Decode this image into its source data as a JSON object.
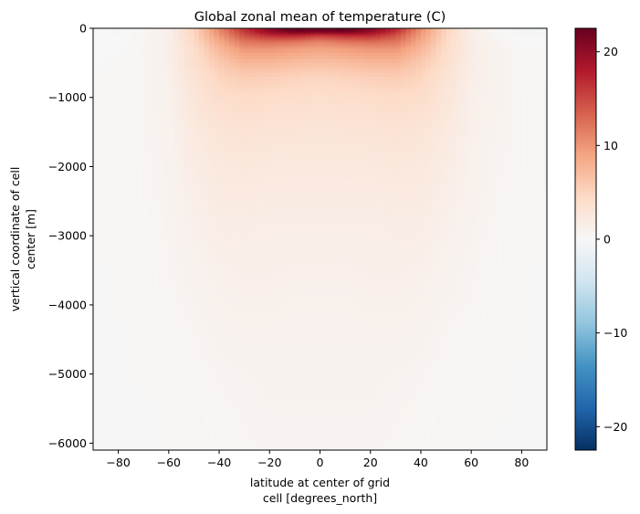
{
  "chart_data": {
    "type": "heatmap",
    "title": "Global zonal mean of temperature (C)",
    "xlabel_lines": [
      "latitude at center of grid",
      "cell [degrees_north]"
    ],
    "ylabel_lines": [
      "vertical coordinate of cell",
      "center [m]"
    ],
    "xlim": [
      -90,
      90
    ],
    "ylim": [
      -6100,
      0
    ],
    "x_ticks": [
      -80,
      -60,
      -40,
      -20,
      0,
      20,
      40,
      60,
      80
    ],
    "x_tick_labels": [
      "−80",
      "−60",
      "−40",
      "−20",
      "0",
      "20",
      "40",
      "60",
      "80"
    ],
    "y_ticks": [
      0,
      -1000,
      -2000,
      -3000,
      -4000,
      -5000,
      -6000
    ],
    "y_tick_labels": [
      "0",
      "−1000",
      "−2000",
      "−3000",
      "−4000",
      "−5000",
      "−6000"
    ],
    "colorbar": {
      "cmap": "RdBu_r",
      "vmin": -22.5,
      "vmax": 22.5,
      "ticks": [
        20,
        10,
        0,
        -10,
        -20
      ],
      "tick_labels": [
        "20",
        "10",
        "0",
        "−10",
        "−20"
      ],
      "colors": [
        "#053061",
        "#2166ac",
        "#4393c3",
        "#92c5de",
        "#d1e5f0",
        "#f7f7f7",
        "#fddbc7",
        "#f4a582",
        "#d6604d",
        "#b2182b",
        "#67001f"
      ]
    },
    "latitudes": [
      -90,
      -80,
      -70,
      -60,
      -50,
      -40,
      -30,
      -20,
      -10,
      0,
      10,
      20,
      30,
      40,
      50,
      60,
      70,
      80,
      90
    ],
    "depth_levels": [
      0,
      -50,
      -100,
      -200,
      -300,
      -500,
      -700,
      -1000,
      -1500,
      -2000,
      -2500,
      -3000,
      -3500,
      -4000,
      -4500,
      -5000,
      -5500,
      -6100
    ],
    "values": [
      [
        -0.2,
        -0.5,
        0.4,
        1.2,
        5.0,
        11.0,
        16.5,
        20.5,
        22.5,
        22.0,
        22.5,
        21.0,
        17.0,
        10.5,
        5.0,
        1.5,
        0.0,
        -0.8,
        -0.5
      ],
      [
        -0.2,
        -0.4,
        0.4,
        1.3,
        5.0,
        10.5,
        16.0,
        20.0,
        22.0,
        21.5,
        22.0,
        20.0,
        16.5,
        10.0,
        5.0,
        1.5,
        0.1,
        -0.6,
        -0.4
      ],
      [
        -0.1,
        -0.2,
        0.5,
        1.3,
        4.8,
        10.0,
        14.5,
        17.0,
        17.5,
        16.0,
        17.0,
        17.0,
        14.5,
        9.5,
        4.8,
        1.5,
        0.3,
        -0.3,
        -0.2
      ],
      [
        0.0,
        0.0,
        0.5,
        1.3,
        4.5,
        8.5,
        12.0,
        12.5,
        12.0,
        11.0,
        12.0,
        12.5,
        12.0,
        8.5,
        4.5,
        1.6,
        0.6,
        0.0,
        0.0
      ],
      [
        0.0,
        0.1,
        0.5,
        1.3,
        4.0,
        7.5,
        10.0,
        10.0,
        9.5,
        9.0,
        9.5,
        10.0,
        10.0,
        7.5,
        4.2,
        1.6,
        0.8,
        0.2,
        0.1
      ],
      [
        0.1,
        0.2,
        0.5,
        1.3,
        3.8,
        6.0,
        7.5,
        7.5,
        7.0,
        6.8,
        7.0,
        7.5,
        7.5,
        6.0,
        3.8,
        1.6,
        0.8,
        0.3,
        0.2
      ],
      [
        0.1,
        0.3,
        0.5,
        1.2,
        3.2,
        5.0,
        5.8,
        5.5,
        5.2,
        5.0,
        5.2,
        5.5,
        5.8,
        5.0,
        3.2,
        1.5,
        0.8,
        0.3,
        0.2
      ],
      [
        0.2,
        0.3,
        0.5,
        1.0,
        2.8,
        4.0,
        4.3,
        4.2,
        4.0,
        3.8,
        4.0,
        4.2,
        4.3,
        4.0,
        2.8,
        1.3,
        0.8,
        0.4,
        0.3
      ],
      [
        0.2,
        0.3,
        0.5,
        0.9,
        2.2,
        3.0,
        3.2,
        3.0,
        3.0,
        2.9,
        3.0,
        3.0,
        3.2,
        3.0,
        2.2,
        1.2,
        0.7,
        0.4,
        0.3
      ],
      [
        0.2,
        0.3,
        0.4,
        0.8,
        1.8,
        2.4,
        2.5,
        2.4,
        2.3,
        2.3,
        2.3,
        2.4,
        2.5,
        2.4,
        1.8,
        1.0,
        0.6,
        0.4,
        0.3
      ],
      [
        0.2,
        0.2,
        0.4,
        0.7,
        1.4,
        2.0,
        2.0,
        1.9,
        1.9,
        1.9,
        1.9,
        1.9,
        2.0,
        2.0,
        1.4,
        0.9,
        0.5,
        0.3,
        0.2
      ],
      [
        0.2,
        0.2,
        0.3,
        0.6,
        1.1,
        1.6,
        1.6,
        1.5,
        1.5,
        1.5,
        1.5,
        1.5,
        1.6,
        1.6,
        1.1,
        0.7,
        0.4,
        0.3,
        0.2
      ],
      [
        0.1,
        0.2,
        0.3,
        0.5,
        0.9,
        1.2,
        1.3,
        1.3,
        1.2,
        1.2,
        1.2,
        1.3,
        1.3,
        1.2,
        0.9,
        0.6,
        0.4,
        0.2,
        0.1
      ],
      [
        0.1,
        0.2,
        0.3,
        0.4,
        0.7,
        1.0,
        1.1,
        1.1,
        1.0,
        1.0,
        1.0,
        1.1,
        1.1,
        1.0,
        0.7,
        0.5,
        0.3,
        0.2,
        0.1
      ],
      [
        0.1,
        0.1,
        0.2,
        0.3,
        0.5,
        0.8,
        0.9,
        0.9,
        0.9,
        0.9,
        0.9,
        0.9,
        0.9,
        0.8,
        0.5,
        0.4,
        0.3,
        0.2,
        0.1
      ],
      [
        0.1,
        0.1,
        0.2,
        0.3,
        0.4,
        0.6,
        0.7,
        0.8,
        0.8,
        0.8,
        0.8,
        0.8,
        0.7,
        0.6,
        0.4,
        0.3,
        0.2,
        0.1,
        0.1
      ],
      [
        0.1,
        0.1,
        0.1,
        0.2,
        0.3,
        0.5,
        0.6,
        0.7,
        0.7,
        0.7,
        0.7,
        0.7,
        0.6,
        0.5,
        0.3,
        0.2,
        0.2,
        0.1,
        0.1
      ],
      [
        0.1,
        0.1,
        0.1,
        0.2,
        0.3,
        0.4,
        0.5,
        0.6,
        0.6,
        0.6,
        0.6,
        0.6,
        0.5,
        0.4,
        0.3,
        0.2,
        0.1,
        0.1,
        0.1
      ]
    ]
  }
}
